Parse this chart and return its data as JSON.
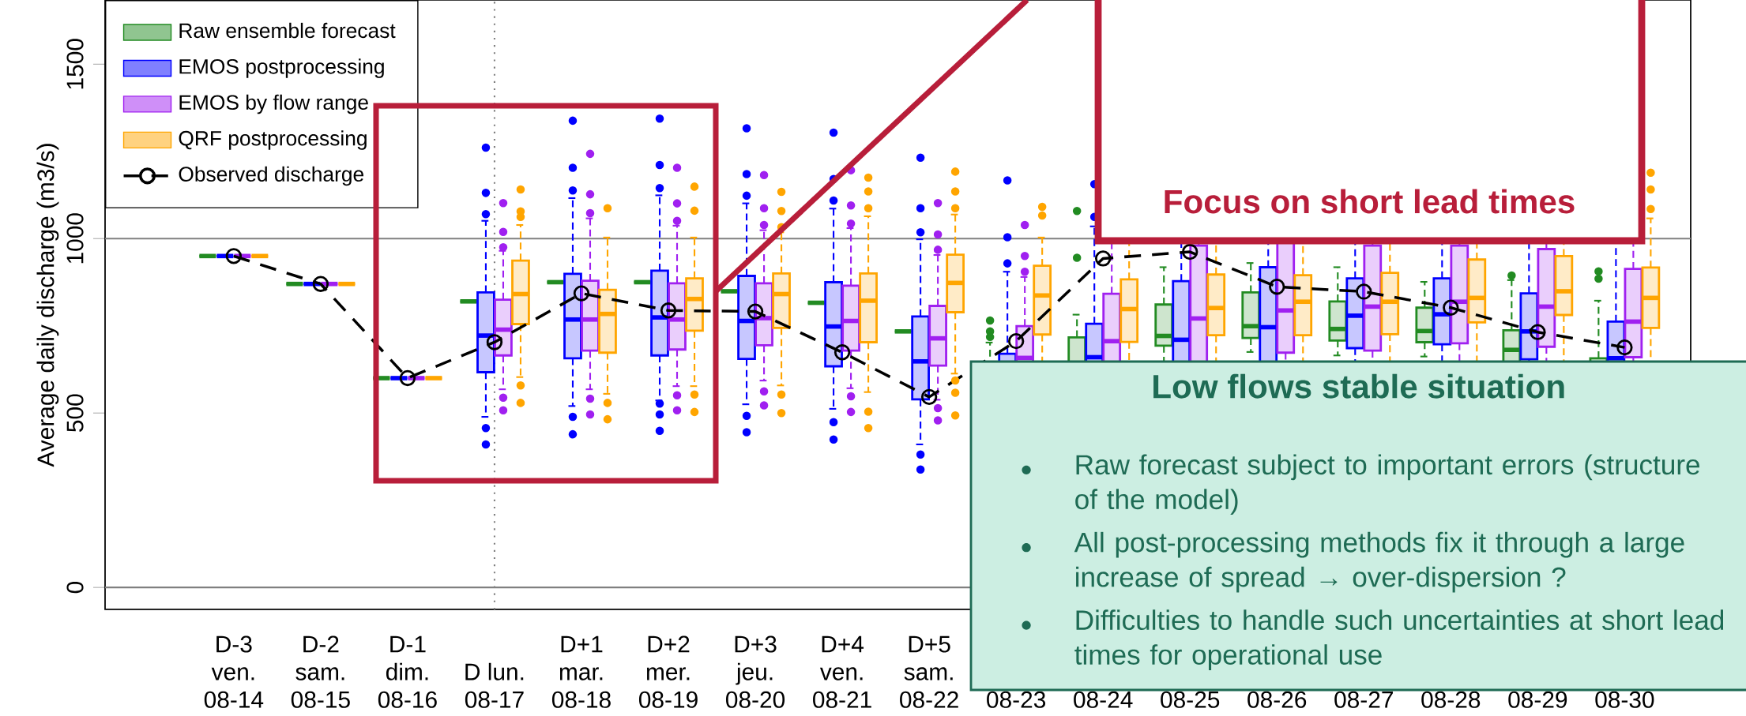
{
  "chart_data": {
    "type": "box",
    "ylabel": "Average daily discharge (m3/s)",
    "categories": [
      "D-3 ven. 08-14",
      "D-2 sam. 08-15",
      "D-1 dim. 08-16",
      "D lun. 08-17",
      "D+1 mar. 08-18",
      "D+2 mer. 08-19",
      "D+3 jeu. 08-20",
      "D+4 ven. 08-21",
      "D+5 sam. 08-22",
      "08-23",
      "08-24",
      "08-25",
      "08-26",
      "08-27",
      "08-28",
      "08-29",
      "08-30"
    ],
    "ylim": [
      -63,
      1684
    ],
    "yticks": [
      0,
      500,
      1000,
      1500
    ],
    "legend": "top left",
    "ref_lines": [
      {
        "axis": "y",
        "value": 0,
        "color": "#808080"
      },
      {
        "axis": "y",
        "value": 1000,
        "color": "#808080"
      },
      {
        "axis": "x",
        "value": "D lun. 08-17",
        "color": "#808080",
        "line_style": "dotted"
      }
    ],
    "annotations": [
      "Focus on short lead times",
      "Low flows stable situation",
      "Raw forecast subject to important errors (structure of the model)",
      "All post-processing methods fix it through a large increase of spread → over-dispersion ?",
      "Difficulties to handle such uncertainties at short lead times for operational use"
    ],
    "series": [
      {
        "name": "Raw ensemble forecast",
        "color": "#228b22",
        "boxes": [
          {
            "low": 950,
            "q1": 950,
            "median": 950,
            "q3": 950,
            "high": 950
          },
          {
            "low": 870,
            "q1": 870,
            "median": 870,
            "q3": 870,
            "high": 870
          },
          {
            "low": 600,
            "q1": 600,
            "median": 600,
            "q3": 600,
            "high": 600
          },
          {
            "low": 820,
            "q1": 820,
            "median": 820,
            "q3": 820,
            "high": 820
          },
          {
            "low": 875,
            "q1": 875,
            "median": 875,
            "q3": 875,
            "high": 875
          },
          {
            "low": 875,
            "q1": 875,
            "median": 875,
            "q3": 875,
            "high": 875
          },
          {
            "low": 849,
            "q1": 849,
            "median": 849,
            "q3": 849,
            "high": 849
          },
          {
            "low": 816,
            "q1": 816,
            "median": 816,
            "q3": 816,
            "high": 816
          },
          {
            "low": 734,
            "q1": 734,
            "median": 734,
            "q3": 734,
            "high": 734
          },
          {
            "low": 500,
            "q1": 560,
            "median": 600,
            "q3": 630,
            "high": 702,
            "outliers": [
              718,
              734,
              765
            ]
          },
          {
            "low": 520,
            "q1": 590,
            "median": 640,
            "q3": 717,
            "high": 782,
            "outliers": [
              945,
              1079
            ]
          },
          {
            "low": 640,
            "q1": 693,
            "median": 721,
            "q3": 811,
            "high": 918
          },
          {
            "low": 675,
            "q1": 715,
            "median": 749,
            "q3": 846,
            "high": 930
          },
          {
            "low": 665,
            "q1": 708,
            "median": 741,
            "q3": 820,
            "high": 918
          },
          {
            "low": 662,
            "q1": 703,
            "median": 735,
            "q3": 802,
            "high": 876
          },
          {
            "low": 560,
            "q1": 630,
            "median": 681,
            "q3": 737,
            "high": 881,
            "outliers": [
              894
            ]
          },
          {
            "low": 490,
            "q1": 560,
            "median": 610,
            "q3": 657,
            "high": 822,
            "outliers": [
              885,
              906
            ]
          }
        ]
      },
      {
        "name": "EMOS postprocessing",
        "color": "#0000ff",
        "boxes": [
          {
            "low": 950,
            "q1": 950,
            "median": 950,
            "q3": 950,
            "high": 950
          },
          {
            "low": 870,
            "q1": 870,
            "median": 870,
            "q3": 870,
            "high": 870
          },
          {
            "low": 600,
            "q1": 600,
            "median": 600,
            "q3": 600,
            "high": 600
          },
          {
            "low": 489,
            "q1": 617,
            "median": 722,
            "q3": 846,
            "high": 1051,
            "outliers": [
              410,
              457,
              1070,
              1131,
              1261
            ]
          },
          {
            "low": 520,
            "q1": 657,
            "median": 768,
            "q3": 899,
            "high": 1116,
            "outliers": [
              439,
              489,
              1138,
              1203,
              1338
            ]
          },
          {
            "low": 536,
            "q1": 665,
            "median": 774,
            "q3": 908,
            "high": 1124,
            "outliers": [
              449,
              496,
              527,
              1145,
              1211,
              1344
            ]
          },
          {
            "low": 525,
            "q1": 655,
            "median": 764,
            "q3": 893,
            "high": 1101,
            "outliers": [
              445,
              492,
              1123,
              1185,
              1316
            ]
          },
          {
            "low": 512,
            "q1": 634,
            "median": 748,
            "q3": 875,
            "high": 1086,
            "outliers": [
              424,
              474,
              1109,
              1171,
              1304
            ]
          },
          {
            "low": 410,
            "q1": 539,
            "median": 648,
            "q3": 777,
            "high": 998,
            "outliers": [
              338,
              381,
              1018,
              1087,
              1232
            ]
          },
          {
            "low": 420,
            "q1": 540,
            "median": 610,
            "q3": 670,
            "high": 905,
            "outliers": [
              929,
              1004,
              1167
            ]
          },
          {
            "low": 430,
            "q1": 580,
            "median": 660,
            "q3": 756,
            "high": 1035,
            "outliers": [
              1062,
              1156
            ]
          },
          {
            "low": 430,
            "q1": 600,
            "median": 710,
            "q3": 878,
            "high": 1080
          },
          {
            "low": 420,
            "q1": 620,
            "median": 746,
            "q3": 918,
            "high": 1100
          },
          {
            "low": 470,
            "q1": 686,
            "median": 779,
            "q3": 886,
            "high": 1100
          },
          {
            "low": 480,
            "q1": 697,
            "median": 783,
            "q3": 886,
            "high": 1080
          },
          {
            "low": 450,
            "q1": 654,
            "median": 734,
            "q3": 843,
            "high": 1090
          },
          {
            "low": 420,
            "q1": 570,
            "median": 657,
            "q3": 762,
            "high": 1000
          }
        ]
      },
      {
        "name": "EMOS by flow range",
        "color": "#a020f0",
        "boxes": [
          {
            "low": 950,
            "q1": 950,
            "median": 950,
            "q3": 950,
            "high": 950
          },
          {
            "low": 870,
            "q1": 870,
            "median": 870,
            "q3": 870,
            "high": 870
          },
          {
            "low": 600,
            "q1": 600,
            "median": 600,
            "q3": 600,
            "high": 600
          },
          {
            "low": 568,
            "q1": 665,
            "median": 739,
            "q3": 825,
            "high": 965,
            "outliers": [
              508,
              544,
              975,
              1019,
              1102
            ]
          },
          {
            "low": 568,
            "q1": 679,
            "median": 768,
            "q3": 879,
            "high": 1058,
            "outliers": [
              496,
              541,
              1073,
              1127,
              1243
            ]
          },
          {
            "low": 577,
            "q1": 682,
            "median": 768,
            "q3": 872,
            "high": 1037,
            "outliers": [
              508,
              551,
              1051,
              1101,
              1203
            ]
          },
          {
            "low": 593,
            "q1": 694,
            "median": 772,
            "q3": 872,
            "high": 1024,
            "outliers": [
              522,
              562,
              1039,
              1087,
              1182
            ]
          },
          {
            "low": 571,
            "q1": 679,
            "median": 764,
            "q3": 865,
            "high": 1030,
            "outliers": [
              503,
              548,
              1043,
              1095,
              1196
            ]
          },
          {
            "low": 538,
            "q1": 636,
            "median": 714,
            "q3": 807,
            "high": 953,
            "outliers": [
              479,
              514,
              968,
              1012,
              1102
            ]
          },
          {
            "low": 480,
            "q1": 590,
            "median": 658,
            "q3": 749,
            "high": 890,
            "outliers": [
              905,
              950,
              1039
            ]
          },
          {
            "low": 480,
            "q1": 610,
            "median": 706,
            "q3": 842,
            "high": 1010
          },
          {
            "low": 480,
            "q1": 640,
            "median": 771,
            "q3": 980,
            "high": 1150
          },
          {
            "low": 520,
            "q1": 673,
            "median": 794,
            "q3": 990,
            "high": 1150
          },
          {
            "low": 520,
            "q1": 679,
            "median": 805,
            "q3": 980,
            "high": 1130
          },
          {
            "low": 520,
            "q1": 700,
            "median": 819,
            "q3": 980,
            "high": 1130
          },
          {
            "low": 520,
            "q1": 690,
            "median": 805,
            "q3": 970,
            "high": 1120
          },
          {
            "low": 500,
            "q1": 660,
            "median": 762,
            "q3": 913,
            "high": 1120
          }
        ]
      },
      {
        "name": "QRF postprocessing",
        "color": "#ffa500",
        "boxes": [
          {
            "low": 950,
            "q1": 950,
            "median": 950,
            "q3": 950,
            "high": 950
          },
          {
            "low": 870,
            "q1": 870,
            "median": 870,
            "q3": 870,
            "high": 870
          },
          {
            "low": 600,
            "q1": 600,
            "median": 600,
            "q3": 600,
            "high": 600
          },
          {
            "low": 603,
            "q1": 755,
            "median": 841,
            "q3": 937,
            "high": 1039,
            "outliers": [
              529,
              579,
              1062,
              1078,
              1141
            ]
          },
          {
            "low": 555,
            "q1": 673,
            "median": 784,
            "q3": 853,
            "high": 1003,
            "outliers": [
              482,
              529,
              1087
            ]
          },
          {
            "low": 577,
            "q1": 736,
            "median": 827,
            "q3": 886,
            "high": 1003,
            "outliers": [
              503,
              553,
              1080,
              1149
            ]
          },
          {
            "low": 579,
            "q1": 744,
            "median": 841,
            "q3": 900,
            "high": 1018,
            "outliers": [
              500,
              553,
              1033,
              1079,
              1134
            ]
          },
          {
            "low": 560,
            "q1": 703,
            "median": 822,
            "q3": 900,
            "high": 1064,
            "outliers": [
              457,
              504,
              1087,
              1135,
              1175
            ]
          },
          {
            "low": 613,
            "q1": 789,
            "median": 873,
            "q3": 954,
            "high": 1069,
            "outliers": [
              493,
              558,
              593,
              1087,
              1135,
              1192
            ]
          },
          {
            "low": 560,
            "q1": 725,
            "median": 837,
            "q3": 922,
            "high": 1003,
            "outliers": [
              1066,
              1091
            ]
          },
          {
            "low": 560,
            "q1": 704,
            "median": 798,
            "q3": 883,
            "high": 1050
          },
          {
            "low": 560,
            "q1": 723,
            "median": 801,
            "q3": 897,
            "high": 1080
          },
          {
            "low": 580,
            "q1": 723,
            "median": 819,
            "q3": 895,
            "high": 1080
          },
          {
            "low": 570,
            "q1": 726,
            "median": 819,
            "q3": 902,
            "high": 1070
          },
          {
            "low": 590,
            "q1": 760,
            "median": 830,
            "q3": 940,
            "high": 1070
          },
          {
            "low": 600,
            "q1": 781,
            "median": 849,
            "q3": 950,
            "high": 1070
          },
          {
            "low": 590,
            "q1": 744,
            "median": 830,
            "q3": 917,
            "high": 1058,
            "outliers": [
              1085,
              1141,
              1189
            ]
          }
        ]
      },
      {
        "name": "Observed discharge",
        "type": "line",
        "color": "#000000",
        "marker": "circle",
        "line_style": "dashed",
        "values": [
          950,
          870,
          600,
          703,
          843,
          794,
          791,
          674,
          546,
          706,
          943,
          962,
          862,
          848,
          802,
          732,
          688
        ]
      }
    ]
  }
}
